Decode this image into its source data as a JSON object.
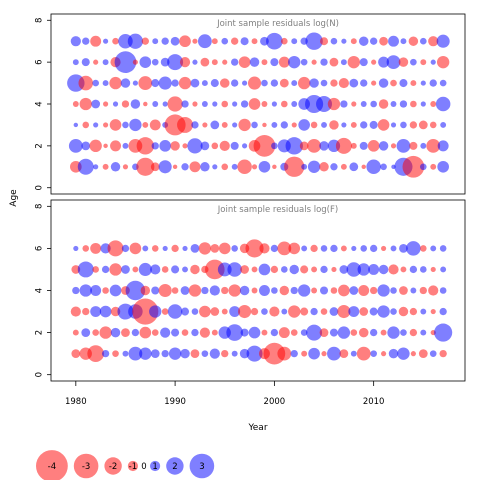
{
  "chart_data": {
    "type": "scatter",
    "encoding": "bubble",
    "colors": {
      "positive": "#0000FF",
      "negative": "#FF0000",
      "point_alpha": 0.5
    },
    "x_years": [
      1980,
      1981,
      1982,
      1983,
      1984,
      1985,
      1986,
      1987,
      1988,
      1989,
      1990,
      1991,
      1992,
      1993,
      1994,
      1995,
      1996,
      1997,
      1998,
      1999,
      2000,
      2001,
      2002,
      2003,
      2004,
      2005,
      2006,
      2007,
      2008,
      2009,
      2010,
      2011,
      2012,
      2013,
      2014,
      2015,
      2016,
      2017
    ],
    "xlabel": "Year",
    "ylabel": "Age",
    "x_ticks": [
      1980,
      1990,
      2000,
      2010
    ],
    "xlim": [
      1977.5,
      2019.2
    ],
    "panels": [
      {
        "title": "Joint sample residuals log(N)",
        "ylim": [
          -0.3,
          8.3
        ],
        "y_ticks": [
          0,
          2,
          4,
          6,
          8
        ],
        "ages": [
          1,
          2,
          3,
          4,
          5,
          6,
          7
        ],
        "residuals": [
          [
            -1.2,
            1.8,
            0.3,
            -0.4,
            0.9,
            -0.3,
            0.5,
            -2.1,
            -0.8,
            1.4,
            -0.2,
            0.6,
            -1.1,
            0.9,
            0.3,
            -0.5,
            0.4,
            -1.6,
            -0.3,
            1.2,
            -0.2,
            0.7,
            -2.4,
            0.4,
            1.3,
            -0.9,
            0.6,
            -0.4,
            0.8,
            -0.2,
            1.6,
            0.5,
            0.2,
            2.1,
            -2.6,
            0.5,
            -0.4,
            1.2
          ],
          [
            1.5,
            0.8,
            -1.3,
            -0.2,
            -1.1,
            0.4,
            -1.5,
            -2.0,
            0.6,
            1.2,
            -0.9,
            -0.3,
            1.7,
            0.8,
            -0.5,
            -1.0,
            0.7,
            0.3,
            -1.2,
            -2.6,
            0.5,
            1.4,
            2.0,
            -0.8,
            -1.5,
            0.9,
            1.3,
            -1.8,
            -0.4,
            0.7,
            -1.2,
            0.9,
            -0.3,
            1.5,
            -0.7,
            0.4,
            -1.5,
            1.1
          ],
          [
            0.2,
            -0.5,
            0.3,
            -0.3,
            -1.2,
            0.5,
            1.3,
            -0.4,
            -1.1,
            0.4,
            -2.5,
            -1.8,
            0.6,
            -0.3,
            0.8,
            -0.4,
            0.3,
            -1.3,
            0.5,
            -0.2,
            0.4,
            0.6,
            -0.3,
            1.2,
            -0.5,
            0.4,
            -0.9,
            0.3,
            -0.4,
            0.6,
            0.7,
            -1.2,
            0.3,
            0.5,
            -0.6,
            -0.8,
            -0.5,
            0.4
          ],
          [
            -0.4,
            -1.3,
            0.8,
            -0.3,
            0.3,
            -0.6,
            0.9,
            -0.2,
            0.4,
            0.3,
            -1.7,
            0.6,
            -0.3,
            0.4,
            0.3,
            -0.5,
            0.3,
            0.6,
            -1.2,
            -0.4,
            0.3,
            -0.5,
            0.4,
            1.2,
            2.1,
            1.8,
            -1.3,
            0.6,
            -0.3,
            0.4,
            0.5,
            -0.9,
            0.4,
            0.6,
            -0.5,
            0.3,
            -0.4,
            1.6
          ],
          [
            2.0,
            -1.6,
            0.5,
            0.4,
            -1.3,
            0.9,
            0.3,
            -1.5,
            0.7,
            1.4,
            0.6,
            -1.3,
            0.8,
            0.4,
            0.7,
            -0.9,
            0.6,
            0.3,
            -1.4,
            0.5,
            0.6,
            -0.8,
            0.4,
            -1.3,
            0.9,
            0.5,
            -0.6,
            -1.0,
            0.8,
            0.6,
            -0.3,
            0.9,
            -0.5,
            0.7,
            -0.4,
            0.3,
            0.6,
            0.5
          ],
          [
            0.4,
            0.7,
            -0.3,
            0.4,
            -1.0,
            2.6,
            -0.3,
            1.2,
            0.5,
            0.8,
            1.8,
            -1.0,
            0.3,
            -0.8,
            -0.4,
            -0.3,
            0.6,
            -1.2,
            0.9,
            -0.4,
            0.7,
            -1.1,
            1.3,
            0.5,
            -0.3,
            0.6,
            -0.8,
            0.4,
            -1.3,
            0.7,
            -0.3,
            1.1,
            1.5,
            -0.9,
            0.5,
            -0.4,
            0.3,
            -1.3
          ],
          [
            1.0,
            0.6,
            -1.1,
            0.3,
            -0.5,
            1.6,
            1.7,
            -0.6,
            0.4,
            0.6,
            0.8,
            -1.2,
            -0.3,
            1.5,
            -0.4,
            0.5,
            -0.6,
            0.7,
            -0.4,
            0.8,
            1.9,
            -0.5,
            0.4,
            0.6,
            2.0,
            -0.7,
            0.5,
            0.3,
            -0.4,
            0.9,
            0.6,
            -0.8,
            1.1,
            0.4,
            -0.9,
            0.5,
            -1.0,
            1.4
          ]
        ]
      },
      {
        "title": "Joint sample residuals log(F)",
        "ylim": [
          -0.3,
          8.3
        ],
        "y_ticks": [
          0,
          2,
          4,
          6,
          8
        ],
        "ages": [
          1,
          2,
          3,
          4,
          5,
          6
        ],
        "residuals": [
          [
            -0.8,
            -1.3,
            -1.9,
            0.6,
            -0.5,
            0.4,
            1.5,
            1.3,
            0.8,
            0.6,
            1.3,
            0.9,
            -0.8,
            0.5,
            1.0,
            -0.6,
            0.4,
            0.9,
            1.8,
            -1.1,
            -2.6,
            -1.5,
            0.6,
            -0.4,
            1.2,
            -0.3,
            1.5,
            -0.8,
            0.4,
            -1.5,
            0.5,
            -0.3,
            0.9,
            1.3,
            -0.3,
            -0.8,
            0.5,
            -0.6
          ],
          [
            -0.4,
            0.8,
            -0.5,
            -1.3,
            0.9,
            -0.8,
            0.6,
            -1.2,
            -0.5,
            1.0,
            0.7,
            -0.5,
            0.6,
            -1.0,
            -0.4,
            1.3,
            1.9,
            0.7,
            1.2,
            -0.4,
            0.6,
            -1.1,
            -0.5,
            0.5,
            1.8,
            -0.8,
            0.7,
            1.3,
            -0.5,
            -0.9,
            0.6,
            -0.4,
            1.3,
            0.5,
            -0.6,
            0.4,
            -0.3,
            2.1
          ],
          [
            -1.0,
            -0.6,
            1.1,
            1.2,
            -0.9,
            1.8,
            1.6,
            -3.2,
            1.3,
            -0.5,
            1.6,
            0.7,
            0.5,
            -1.2,
            -0.8,
            -0.4,
            1.1,
            -1.4,
            -0.6,
            0.5,
            -1.0,
            0.4,
            -1.3,
            -0.7,
            0.6,
            -0.5,
            0.8,
            -1.4,
            1.1,
            -0.8,
            0.7,
            1.3,
            0.5,
            -0.9,
            -0.6,
            0.4,
            -0.3,
            0.6
          ],
          [
            0.6,
            1.3,
            1.1,
            -0.5,
            1.2,
            -0.8,
            2.3,
            -0.9,
            0.7,
            -1.4,
            -0.5,
            0.8,
            -1.3,
            0.6,
            1.0,
            -0.6,
            -1.3,
            0.9,
            -0.4,
            1.1,
            0.5,
            -0.9,
            0.6,
            1.3,
            -0.4,
            0.7,
            -0.5,
            -1.2,
            0.8,
            -1.1,
            -0.6,
            1.3,
            0.5,
            -0.8,
            0.4,
            -0.6,
            -1.0,
            0.5
          ],
          [
            -0.8,
            1.8,
            -0.5,
            0.6,
            -1.3,
            0.8,
            -0.4,
            1.4,
            1.0,
            -0.5,
            0.7,
            0.4,
            -0.9,
            -0.6,
            -2.3,
            1.5,
            1.6,
            -0.8,
            -0.4,
            1.2,
            -0.6,
            0.5,
            0.9,
            -0.7,
            -0.4,
            0.6,
            -0.3,
            0.8,
            1.6,
            1.3,
            1.1,
            0.9,
            -1.0,
            -0.4,
            0.6,
            0.5,
            -0.3,
            0.4
          ],
          [
            0.3,
            -0.5,
            -1.1,
            1.0,
            -1.8,
            0.6,
            -1.2,
            0.4,
            -0.5,
            0.3,
            -0.6,
            0.3,
            0.8,
            -1.3,
            -0.8,
            -1.2,
            0.5,
            -0.9,
            -2.1,
            -1.0,
            0.6,
            -1.5,
            -1.2,
            0.4,
            -0.6,
            0.5,
            0.6,
            -0.4,
            0.3,
            0.5,
            0.6,
            -0.3,
            0.4,
            0.8,
            1.6,
            -0.5,
            0.4,
            0.5
          ]
        ]
      }
    ],
    "legend": {
      "placement": "bottom-left",
      "values": [
        -4,
        -3,
        -2,
        -1,
        0,
        1,
        2,
        3
      ]
    }
  }
}
